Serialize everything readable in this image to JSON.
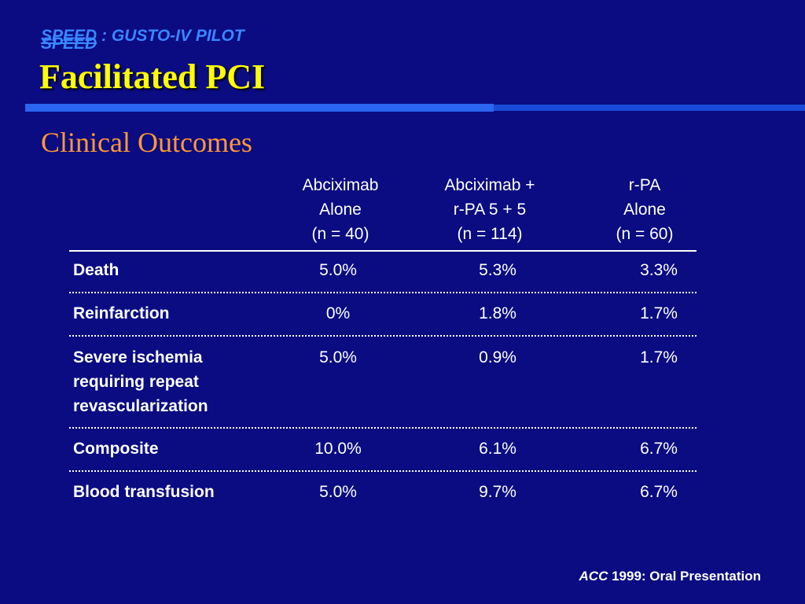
{
  "header": {
    "kicker_line1": "SPEED",
    "kicker_line1_rest": " : GUSTO-IV PILOT",
    "kicker_line2": "SPEED",
    "title": "Facilitated PCI"
  },
  "subtitle": "Clinical Outcomes",
  "table": {
    "columns": [
      "Abciximab\nAlone\n(n = 40)",
      "Abciximab +\nr-PA 5 + 5\n(n = 114)",
      "r-PA\nAlone\n(n = 60)"
    ],
    "rows": [
      {
        "label": "Death",
        "values": [
          "5.0%",
          "5.3%",
          "3.3%"
        ]
      },
      {
        "label": "Reinfarction",
        "values": [
          "0%",
          "1.8%",
          "1.7%"
        ]
      },
      {
        "label": "Severe ischemia\nrequiring repeat\nrevascularization",
        "values": [
          "5.0%",
          "0.9%",
          "1.7%"
        ]
      },
      {
        "label": "Composite",
        "values": [
          "10.0%",
          "6.1%",
          "6.7%"
        ]
      },
      {
        "label": "Blood transfusion",
        "values": [
          "5.0%",
          "9.7%",
          "6.7%"
        ]
      }
    ]
  },
  "footer": {
    "journal": "ACC",
    "citation_rest": " 1999: Oral Presentation"
  },
  "colors": {
    "background": "#0b0b82",
    "title": "#ffff00",
    "subtitle": "#ff9933",
    "kicker": "#3a86ff",
    "rule": "#2a66f0"
  }
}
